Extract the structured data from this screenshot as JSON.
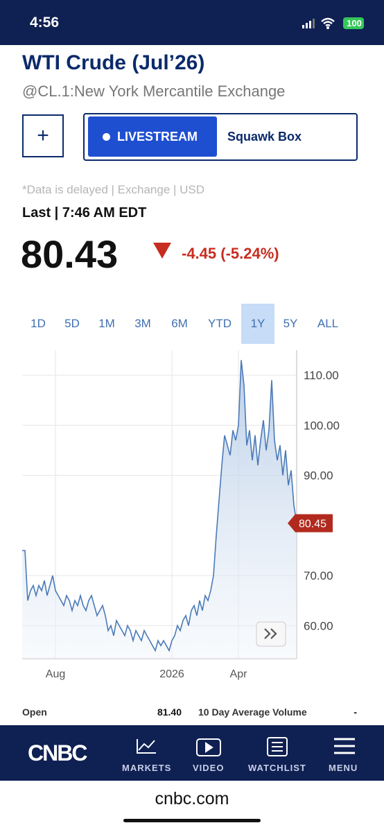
{
  "status_bar": {
    "time": "4:56",
    "battery": "100"
  },
  "header": {
    "title": "WTI Crude (Jul’26)",
    "subtitle": "@CL.1:New York Mercantile Exchange"
  },
  "buttons": {
    "add": "+",
    "livestream": "LIVESTREAM",
    "show": "Squawk Box"
  },
  "quote": {
    "note": "*Data is delayed | Exchange | USD",
    "last_time": "Last | 7:46 AM EDT",
    "price": "80.43",
    "change": "-4.45 (-5.24%)"
  },
  "ranges": {
    "options": [
      "1D",
      "5D",
      "1M",
      "3M",
      "6M",
      "YTD",
      "1Y",
      "5Y",
      "ALL"
    ],
    "selected": "1Y"
  },
  "chart_data": {
    "type": "line",
    "categories": [
      null,
      null,
      null,
      null,
      null,
      null,
      null,
      null,
      null,
      null,
      null,
      null,
      "Aug",
      null,
      null,
      null,
      null,
      null,
      null,
      null,
      null,
      null,
      null,
      null,
      null,
      null,
      null,
      null,
      null,
      null,
      null,
      null,
      null,
      null,
      null,
      null,
      null,
      null,
      null,
      null,
      null,
      null,
      null,
      null,
      null,
      null,
      null,
      null,
      null,
      null,
      null,
      null,
      null,
      null,
      "2026",
      null,
      null,
      null,
      null,
      null,
      null,
      null,
      null,
      null,
      null,
      null,
      null,
      null,
      null,
      null,
      null,
      null,
      null,
      null,
      null,
      null,
      null,
      null,
      "Apr",
      null,
      null,
      null,
      null,
      null,
      null,
      null,
      null,
      null,
      null,
      null,
      null,
      null,
      null,
      null,
      null,
      null,
      null,
      null,
      null,
      null
    ],
    "values": [
      75,
      75,
      65,
      67,
      68,
      66,
      68,
      67,
      69,
      66,
      68,
      70,
      67,
      66,
      65,
      64,
      66,
      65,
      63,
      65,
      64,
      66,
      64,
      63,
      65,
      66,
      64,
      62,
      63,
      64,
      62,
      59,
      60,
      58,
      61,
      60,
      59,
      58,
      60,
      59,
      57,
      59,
      58,
      57,
      59,
      58,
      57,
      56,
      55,
      57,
      56,
      57,
      56,
      55,
      57,
      58,
      60,
      59,
      61,
      62,
      60,
      63,
      64,
      62,
      65,
      63,
      66,
      65,
      67,
      70,
      78,
      85,
      92,
      98,
      96,
      94,
      99,
      97,
      100,
      113,
      108,
      96,
      99,
      93,
      98,
      92,
      97,
      101,
      95,
      99,
      109,
      97,
      93,
      96,
      90,
      95,
      88,
      91,
      84,
      80.45
    ],
    "color": "#4a7ab8",
    "ylim": [
      53.4,
      115
    ],
    "yticks": [
      {
        "value": 60,
        "label": "60.00"
      },
      {
        "value": 70,
        "label": "70.00"
      },
      {
        "value": 90,
        "label": "90.00"
      },
      {
        "value": 100,
        "label": "100.00"
      },
      {
        "value": 110,
        "label": "110.00"
      }
    ],
    "grid": true
  },
  "stats": [
    {
      "label": "Open",
      "value": "81.40"
    },
    {
      "label": "10 Day Average Volume",
      "value": "-"
    }
  ],
  "nav": {
    "brand": "CNBC",
    "items": [
      "MARKETS",
      "VIDEO",
      "WATCHLIST",
      "MENU"
    ]
  },
  "footer": {
    "url": "cnbc.com"
  }
}
